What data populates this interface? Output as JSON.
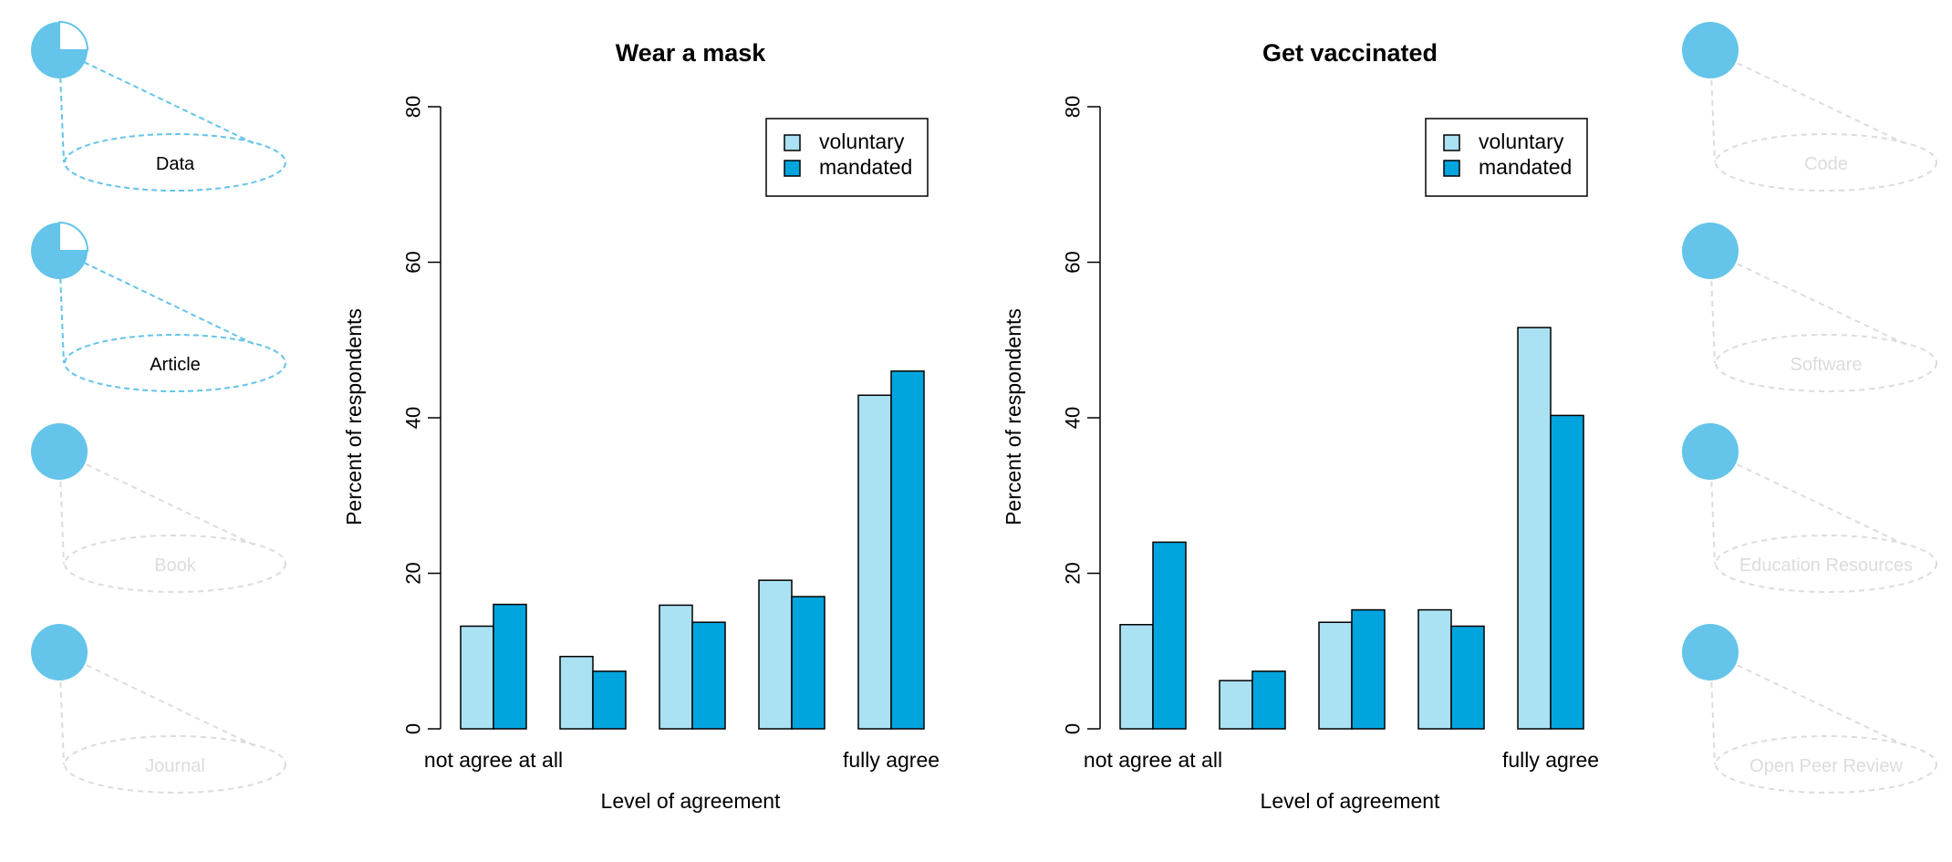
{
  "colors": {
    "accent": "#64c4ea",
    "voluntary": "#aae1f3",
    "mandated": "#00a5de",
    "inactive": "#dcdcdc",
    "text": "#000000",
    "axis": "#000000"
  },
  "side_left": {
    "items": [
      {
        "label": "Data",
        "active": true
      },
      {
        "label": "Article",
        "active": true
      },
      {
        "label": "Book",
        "active": false
      },
      {
        "label": "Journal",
        "active": false
      }
    ]
  },
  "side_right": {
    "items": [
      {
        "label": "Code",
        "active": false
      },
      {
        "label": "Software",
        "active": false
      },
      {
        "label": "Education Resources",
        "active": false
      },
      {
        "label": "Open Peer Review",
        "active": false
      }
    ]
  },
  "chart_data": [
    {
      "type": "bar",
      "title": "Wear a mask",
      "xlabel": "Level of agreement",
      "ylabel": "Percent of respondents",
      "ylim": [
        0,
        80
      ],
      "yticks": [
        0,
        20,
        40,
        60,
        80
      ],
      "categories": [
        "not agree at all",
        "",
        "",
        "",
        "fully agree"
      ],
      "legend": {
        "position": "top-right",
        "entries": [
          "voluntary",
          "mandated"
        ]
      },
      "series": [
        {
          "name": "voluntary",
          "values": [
            13.2,
            9.3,
            15.9,
            19.1,
            42.9
          ]
        },
        {
          "name": "mandated",
          "values": [
            16.0,
            7.4,
            13.7,
            17.0,
            46.0
          ]
        }
      ]
    },
    {
      "type": "bar",
      "title": "Get vaccinated",
      "xlabel": "Level of agreement",
      "ylabel": "Percent of respondents",
      "ylim": [
        0,
        80
      ],
      "yticks": [
        0,
        20,
        40,
        60,
        80
      ],
      "categories": [
        "not agree at all",
        "",
        "",
        "",
        "fully agree"
      ],
      "legend": {
        "position": "top-right",
        "entries": [
          "voluntary",
          "mandated"
        ]
      },
      "series": [
        {
          "name": "voluntary",
          "values": [
            13.4,
            6.2,
            13.7,
            15.3,
            51.6
          ]
        },
        {
          "name": "mandated",
          "values": [
            24.0,
            7.4,
            15.3,
            13.2,
            40.3
          ]
        }
      ]
    }
  ]
}
